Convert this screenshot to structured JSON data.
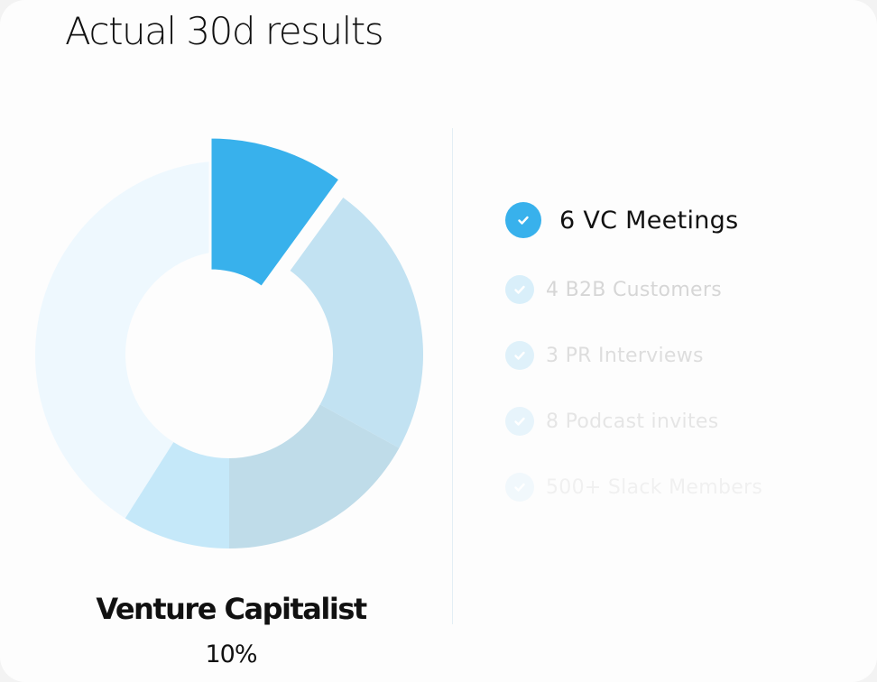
{
  "title": "Actual 30d results",
  "chart_data": {
    "type": "pie",
    "variant": "donut",
    "title": "Actual 30d results",
    "values": [
      10,
      23,
      17,
      9,
      41
    ],
    "colors": [
      "#38b1ec",
      "#c2e2f2",
      "#bfdce9",
      "#c5e8f9",
      "#eef8fe"
    ],
    "highlighted_index": 0,
    "highlighted": {
      "name": "Venture Capitalist",
      "value_label": "10%"
    }
  },
  "checklist": [
    {
      "label": "6 VC Meetings",
      "active": true
    },
    {
      "label": "4 B2B Customers",
      "active": false
    },
    {
      "label": "3 PR Interviews",
      "active": false
    },
    {
      "label": "8 Podcast invites",
      "active": false
    },
    {
      "label": "500+ Slack Members",
      "active": false
    }
  ],
  "colors": {
    "accent": "#38b1ec"
  }
}
